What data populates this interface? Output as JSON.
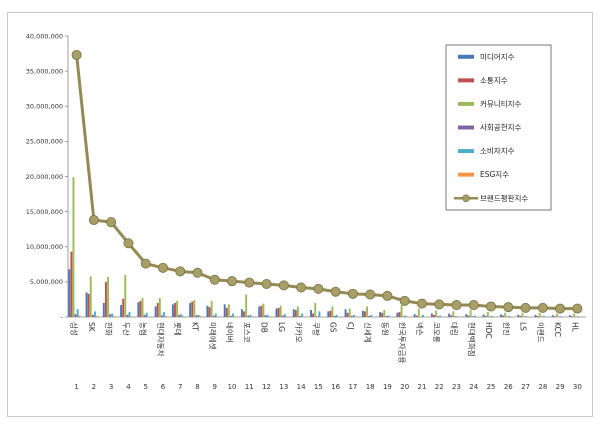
{
  "chart_data": {
    "type": "bar",
    "title": "",
    "xlabel": "",
    "ylabel": "",
    "ylim": [
      0,
      40000000
    ],
    "ytick_labels": [
      "-",
      "5,000,000",
      "10,000,000",
      "15,000,000",
      "20,000,000",
      "25,000,000",
      "30,000,000",
      "35,000,000",
      "40,000,000"
    ],
    "categories": [
      "삼성",
      "SK",
      "한화",
      "두산",
      "농협",
      "현대자동차",
      "롯데",
      "KT",
      "미래에셋",
      "네이버",
      "포스코",
      "DB",
      "LG",
      "카카오",
      "쿠팡",
      "GS",
      "CJ",
      "신세계",
      "동원",
      "한국투자금융",
      "넥슨",
      "코오롱",
      "대림",
      "현대백화점",
      "HDC",
      "한진",
      "LS",
      "이랜드",
      "KCC",
      "HL"
    ],
    "ranks": [
      "1",
      "2",
      "3",
      "4",
      "5",
      "6",
      "7",
      "8",
      "9",
      "10",
      "11",
      "12",
      "13",
      "14",
      "15",
      "16",
      "17",
      "18",
      "19",
      "20",
      "21",
      "22",
      "23",
      "24",
      "25",
      "26",
      "27",
      "28",
      "29",
      "30"
    ],
    "series": [
      {
        "name": "미디어지수",
        "type": "bar",
        "color": "#4a78b5",
        "values": [
          6800000,
          3500000,
          2000000,
          1700000,
          2100000,
          1500000,
          1800000,
          2000000,
          1600000,
          1800000,
          1100000,
          1500000,
          1200000,
          1100000,
          1000000,
          800000,
          1100000,
          900000,
          700000,
          600000,
          400000,
          500000,
          500000,
          400000,
          350000,
          350000,
          300000,
          300000,
          250000,
          250000
        ]
      },
      {
        "name": "소통지수",
        "type": "bar",
        "color": "#c0504d",
        "values": [
          9300000,
          3300000,
          5000000,
          2600000,
          2300000,
          2000000,
          2000000,
          2200000,
          1400000,
          1300000,
          800000,
          1600000,
          1300000,
          1000000,
          500000,
          900000,
          600000,
          800000,
          600000,
          700000,
          200000,
          300000,
          250000,
          200000,
          150000,
          200000,
          150000,
          150000,
          100000,
          100000
        ]
      },
      {
        "name": "커뮤니티지수",
        "type": "bar",
        "color": "#9bbb59",
        "values": [
          19900000,
          5800000,
          5700000,
          6000000,
          2700000,
          2700000,
          2300000,
          2400000,
          2300000,
          1800000,
          3200000,
          1900000,
          1600000,
          1500000,
          2000000,
          1500000,
          1200000,
          1500000,
          1000000,
          1700000,
          1200000,
          900000,
          800000,
          1000000,
          700000,
          600000,
          600000,
          600000,
          500000,
          500000
        ]
      },
      {
        "name": "사회공헌지수",
        "type": "bar",
        "color": "#8064a2",
        "values": [
          400000,
          300000,
          400000,
          300000,
          300000,
          250000,
          300000,
          250000,
          200000,
          150000,
          200000,
          250000,
          200000,
          150000,
          100000,
          150000,
          150000,
          150000,
          150000,
          100000,
          50000,
          100000,
          100000,
          100000,
          80000,
          80000,
          80000,
          80000,
          50000,
          50000
        ]
      },
      {
        "name": "소비자지수",
        "type": "bar",
        "color": "#4bacc6",
        "values": [
          1100000,
          800000,
          500000,
          700000,
          600000,
          700000,
          400000,
          300000,
          500000,
          500000,
          300000,
          300000,
          400000,
          500000,
          800000,
          300000,
          300000,
          300000,
          200000,
          200000,
          300000,
          200000,
          100000,
          200000,
          150000,
          150000,
          100000,
          150000,
          100000,
          100000
        ]
      },
      {
        "name": "ESG지수",
        "type": "bar",
        "color": "#f79646",
        "values": [
          200000,
          150000,
          150000,
          100000,
          100000,
          150000,
          150000,
          150000,
          100000,
          100000,
          100000,
          100000,
          100000,
          80000,
          50000,
          80000,
          80000,
          80000,
          50000,
          50000,
          50000,
          50000,
          50000,
          50000,
          30000,
          30000,
          30000,
          30000,
          30000,
          30000
        ]
      },
      {
        "name": "브랜드평판지수",
        "type": "line",
        "color": "#948a54",
        "values": [
          37300000,
          13800000,
          13500000,
          10500000,
          7600000,
          7000000,
          6500000,
          6300000,
          5300000,
          5100000,
          4900000,
          4700000,
          4500000,
          4200000,
          4000000,
          3600000,
          3300000,
          3200000,
          3000000,
          2300000,
          1900000,
          1800000,
          1700000,
          1700000,
          1500000,
          1400000,
          1300000,
          1300000,
          1200000,
          1200000
        ]
      }
    ],
    "legend_position": "right"
  }
}
